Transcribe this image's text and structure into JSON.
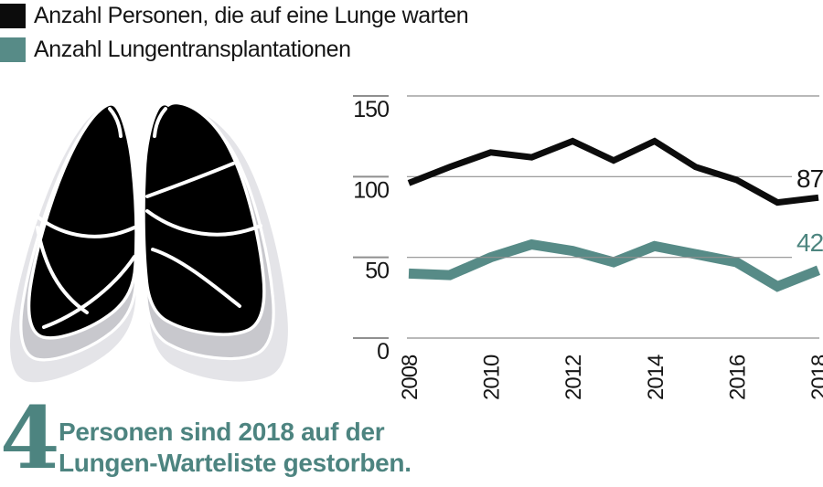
{
  "legend": {
    "items": [
      {
        "label": "Anzahl Personen, die auf eine Lunge warten",
        "color": "#0c0c0c"
      },
      {
        "label": "Anzahl Lungentransplantationen",
        "color": "#578b87"
      }
    ]
  },
  "chart_data": {
    "type": "line",
    "x": [
      2008,
      2009,
      2010,
      2011,
      2012,
      2013,
      2014,
      2015,
      2016,
      2017,
      2018
    ],
    "x_tick_labels": [
      "2008",
      "2010",
      "2012",
      "2014",
      "2016",
      "2018"
    ],
    "ylim": [
      0,
      150
    ],
    "yticks": [
      150,
      100,
      50,
      0
    ],
    "grid": true,
    "legend_position": "top-left",
    "series": [
      {
        "name": "Anzahl Personen, die auf eine Lunge warten",
        "color": "#0c0c0c",
        "stroke_width": 7,
        "values": [
          96,
          106,
          115,
          112,
          122,
          110,
          122,
          106,
          98,
          84,
          87
        ],
        "end_label": "87"
      },
      {
        "name": "Anzahl Lungentransplantationen",
        "color": "#578b87",
        "stroke_width": 11,
        "values": [
          40,
          39,
          50,
          58,
          54,
          47,
          57,
          52,
          47,
          32,
          42
        ],
        "end_label": "42"
      }
    ]
  },
  "footer": {
    "big_number": "4",
    "text_line1": "Personen sind 2018 auf der",
    "text_line2": "Lungen-Warteliste gestorben.",
    "color": "#4d8480"
  },
  "illustration": {
    "name": "lungs",
    "colors": {
      "lung": "#000000",
      "shadow_light": "#e4e4e8",
      "shadow_mid": "#c8c8cd",
      "detail_lines": "#ffffff"
    }
  },
  "colors": {
    "grid": "#8f8f8f",
    "axis_text": "#161616",
    "end_label_black": "#161616",
    "end_label_teal": "#4d857f"
  }
}
